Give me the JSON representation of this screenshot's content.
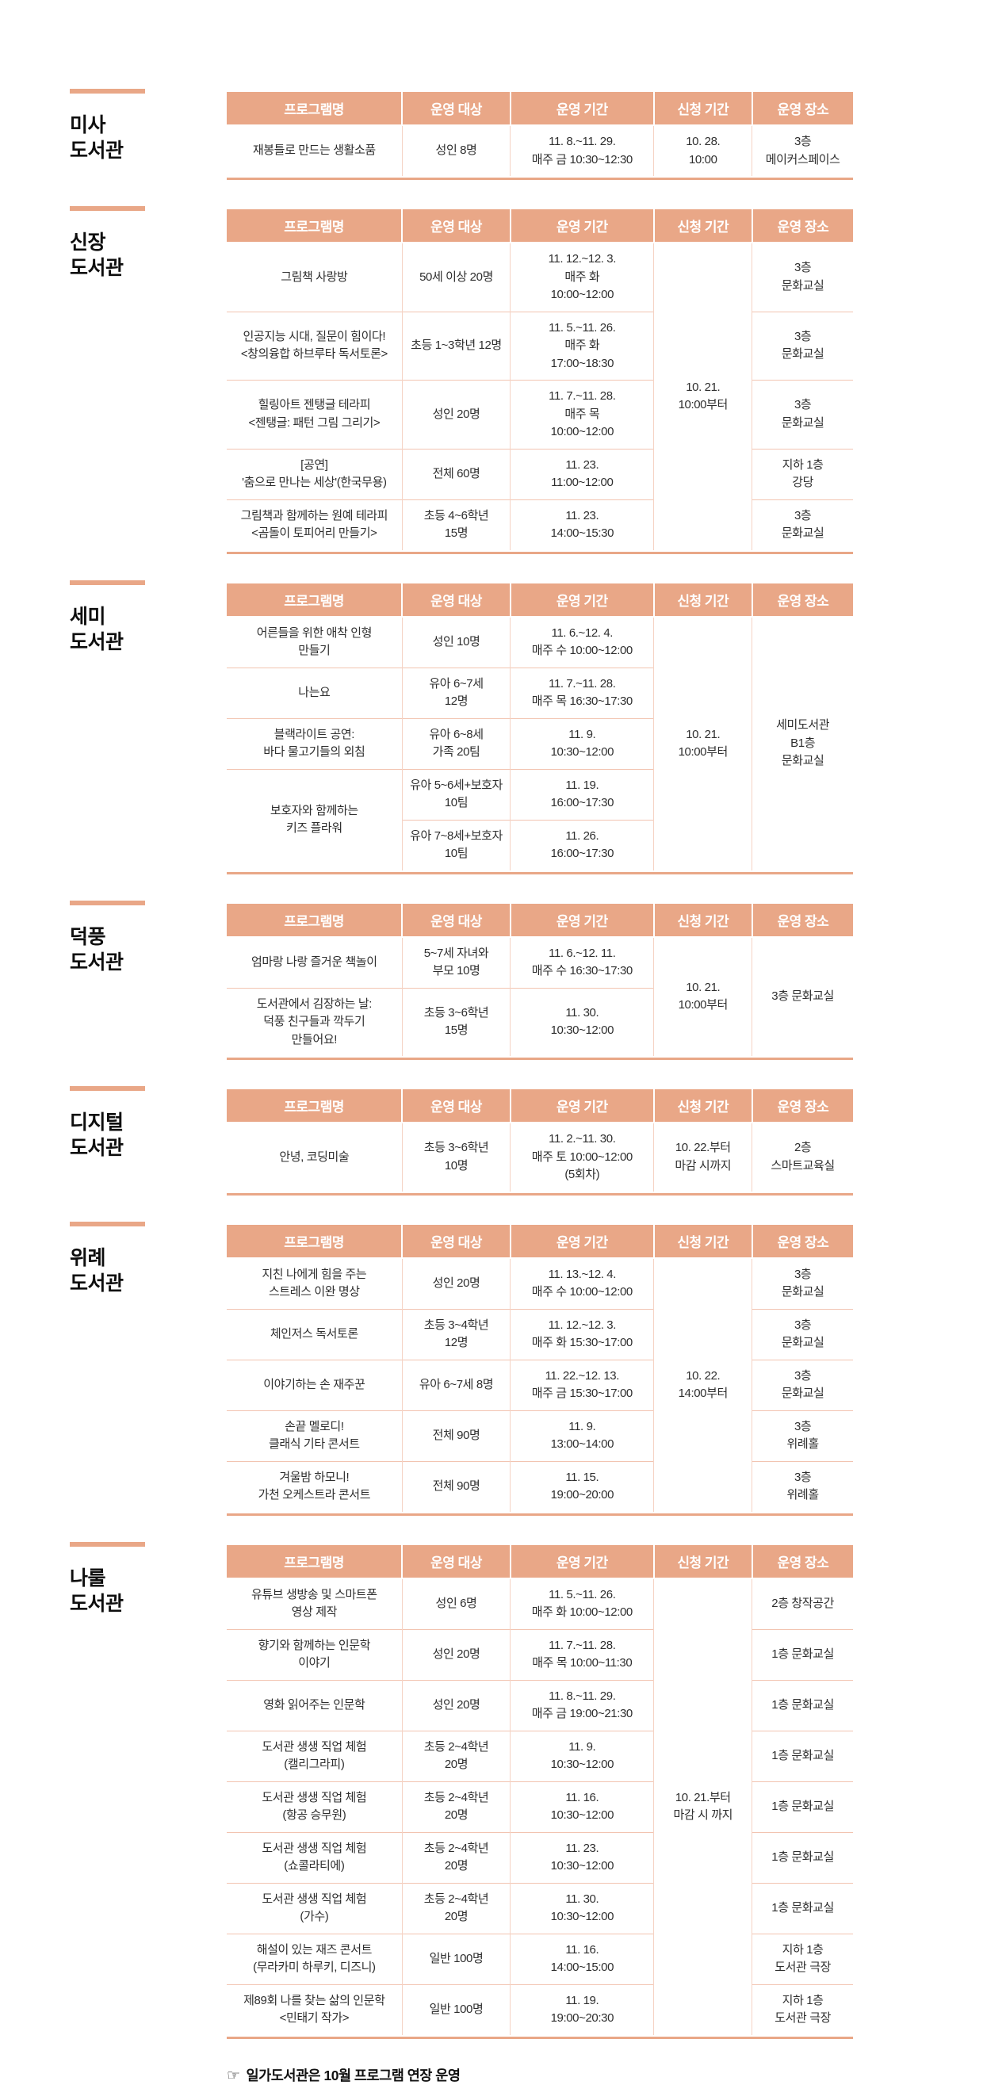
{
  "colors": {
    "accent": "#E9A787",
    "header_text": "#FFFFFF",
    "grid_line": "#F2C4B1"
  },
  "columns": [
    "프로그램명",
    "운영 대상",
    "운영 기간",
    "신청 기간",
    "운영 장소"
  ],
  "footer": {
    "icon": "☞",
    "text": "일가도서관은 10월 프로그램 연장 운영"
  },
  "sections": [
    {
      "library": "미사\n도서관",
      "rows": [
        [
          "재봉틀로 만드는 생활소품",
          "성인 8명",
          "11. 8.~11. 29.\n매주 금 10:30~12:30",
          "10. 28.\n10:00",
          "3층\n메이커스페이스"
        ]
      ]
    },
    {
      "library": "신장\n도서관",
      "rows": [
        [
          "그림책 사랑방",
          "50세 이상 20명",
          "11. 12.~12. 3.\n매주 화\n10:00~12:00",
          "10. 21.\n10:00부터",
          "3층\n문화교실"
        ],
        [
          "인공지능 시대, 질문이 힘이다!\n<창의융합 하브루타 독서토론>",
          "초등 1~3학년 12명",
          "11. 5.~11. 26.\n매주 화\n17:00~18:30",
          "3층\n문화교실"
        ],
        [
          "힐링아트 젠탱글 테라피\n<젠탱글: 패턴 그림 그리기>",
          "성인 20명",
          "11. 7.~11. 28.\n매주 목\n10:00~12:00",
          "3층\n문화교실"
        ],
        [
          "[공연]\n'춤으로 만나는 세상'(한국무용)",
          "전체 60명",
          "11. 23.\n11:00~12:00",
          "지하 1층\n강당"
        ],
        [
          "그림책과 함께하는 원예 테라피\n<곰돌이 토피어리 만들기>",
          "초등 4~6학년\n15명",
          "11. 23.\n14:00~15:30",
          "3층\n문화교실"
        ]
      ]
    },
    {
      "library": "세미\n도서관",
      "rows": [
        [
          "어른들을 위한 애착 인형\n만들기",
          "성인 10명",
          "11. 6.~12. 4.\n매주 수 10:00~12:00",
          "10. 21.\n10:00부터",
          "세미도서관\nB1층\n문화교실"
        ],
        [
          "나는요",
          "유아 6~7세\n12명",
          "11. 7.~11. 28.\n매주 목 16:30~17:30"
        ],
        [
          "블랙라이트 공연:\n바다 물고기들의 외침",
          "유아 6~8세\n가족 20팀",
          "11. 9.\n10:30~12:00"
        ],
        [
          "보호자와 함께하는\n키즈 플라워",
          "유아 5~6세+보호자\n10팀",
          "11. 19.\n16:00~17:30"
        ],
        [
          "유아 7~8세+보호자\n10팀",
          "11. 26.\n16:00~17:30"
        ]
      ]
    },
    {
      "library": "덕풍\n도서관",
      "rows": [
        [
          "엄마랑 나랑 즐거운 책놀이",
          "5~7세 자녀와\n부모 10명",
          "11. 6.~12. 11.\n매주 수 16:30~17:30",
          "10. 21.\n10:00부터",
          "3층 문화교실"
        ],
        [
          "도서관에서 김장하는 날:\n덕풍 친구들과 깍두기\n만들어요!",
          "초등 3~6학년\n15명",
          "11. 30.\n10:30~12:00"
        ]
      ]
    },
    {
      "library": "디지털\n도서관",
      "rows": [
        [
          "안녕, 코딩미술",
          "초등 3~6학년\n10명",
          "11. 2.~11. 30.\n매주 토 10:00~12:00\n(5회차)",
          "10. 22.부터\n마감 시까지",
          "2층\n스마트교육실"
        ]
      ]
    },
    {
      "library": "위례\n도서관",
      "rows": [
        [
          "지친 나에게 힘을 주는\n스트레스 이완 명상",
          "성인 20명",
          "11. 13.~12. 4.\n매주 수 10:00~12:00",
          "10. 22.\n14:00부터",
          "3층\n문화교실"
        ],
        [
          "체인저스 독서토론",
          "초등 3~4학년\n12명",
          "11. 12.~12. 3.\n매주 화 15:30~17:00",
          "3층\n문화교실"
        ],
        [
          "이야기하는 손 재주꾼",
          "유아 6~7세 8명",
          "11. 22.~12. 13.\n매주 금 15:30~17:00",
          "3층\n문화교실"
        ],
        [
          "손끝 멜로디!\n클래식 기타 콘서트",
          "전체 90명",
          "11. 9.\n13:00~14:00",
          "3층\n위례홀"
        ],
        [
          "겨울밤 하모니!\n가천 오케스트라 콘서트",
          "전체 90명",
          "11. 15.\n19:00~20:00",
          "3층\n위례홀"
        ]
      ]
    },
    {
      "library": "나룰\n도서관",
      "rows": [
        [
          "유튜브 생방송 및 스마트폰\n영상 제작",
          "성인 6명",
          "11. 5.~11. 26.\n매주 화 10:00~12:00",
          "10. 21.부터\n마감 시 까지",
          "2층 창작공간"
        ],
        [
          "향기와 함께하는 인문학\n이야기",
          "성인 20명",
          "11. 7.~11. 28.\n매주 목 10:00~11:30",
          "1층 문화교실"
        ],
        [
          "영화 읽어주는 인문학",
          "성인 20명",
          "11. 8.~11. 29.\n매주 금 19:00~21:30",
          "1층 문화교실"
        ],
        [
          "도서관 생생 직업 체험\n(캘리그라피)",
          "초등 2~4학년\n20명",
          "11. 9.\n10:30~12:00",
          "1층 문화교실"
        ],
        [
          "도서관 생생 직업 체험\n(항공 승무원)",
          "초등 2~4학년\n20명",
          "11. 16.\n10:30~12:00",
          "1층 문화교실"
        ],
        [
          "도서관 생생 직업 체험\n(쇼콜라티에)",
          "초등 2~4학년\n20명",
          "11. 23.\n10:30~12:00",
          "1층 문화교실"
        ],
        [
          "도서관 생생 직업 체험\n(가수)",
          "초등 2~4학년\n20명",
          "11. 30.\n10:30~12:00",
          "1층 문화교실"
        ],
        [
          "해설이 있는 재즈 콘서트\n(무라카미 하루키, 디즈니)",
          "일반 100명",
          "11. 16.\n14:00~15:00",
          "지하 1층\n도서관 극장"
        ],
        [
          "제89회 나를 찾는 삶의 인문학\n<민태기 작가>",
          "일반 100명",
          "11. 19.\n19:00~20:30",
          "지하 1층\n도서관 극장"
        ]
      ]
    }
  ]
}
